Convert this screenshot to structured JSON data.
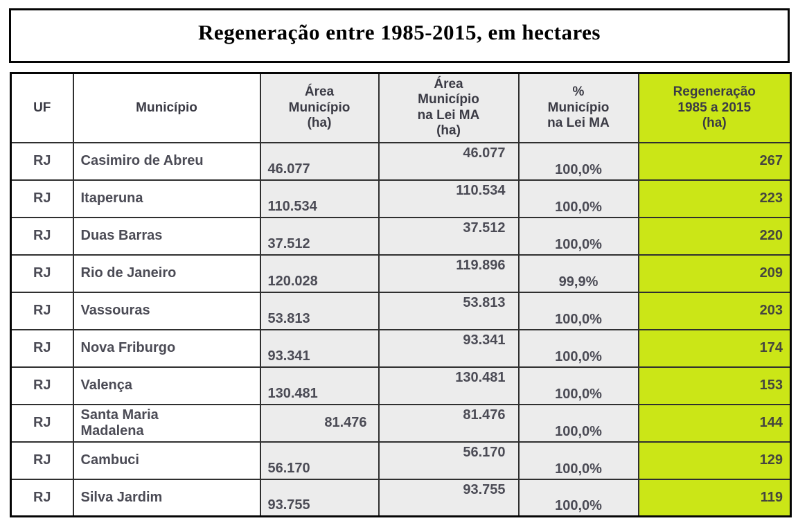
{
  "page": {
    "title": "Regeneração entre 1985-2015, em hectares"
  },
  "colors": {
    "highlight_green": "#cbe617",
    "header_cell_gray": "#ececec",
    "border_black": "#050505",
    "grid_gray": "#2f2f2f",
    "text_dark": "#3b3b45"
  },
  "chart_data": {
    "type": "table",
    "title": "Regeneração entre 1985-2015, em hectares",
    "columns": [
      {
        "id": "uf",
        "label": "UF"
      },
      {
        "id": "municipio",
        "label": "Município"
      },
      {
        "id": "area_municipio_ha",
        "label": "Área\nMunicípio\n(ha)"
      },
      {
        "id": "area_lei_ma_ha",
        "label": "Área\nMunicípio\nna Lei MA\n(ha)"
      },
      {
        "id": "pct_lei_ma",
        "label": "%\nMunicípio\nna Lei MA"
      },
      {
        "id": "regeneracao_ha",
        "label": "Regeneração\n1985 a 2015\n(ha)"
      }
    ],
    "rows": [
      {
        "uf": "RJ",
        "municipio": "Casimiro de Abreu",
        "area_municipio_ha": "46.077",
        "area_lei_ma_ha": "46.077",
        "pct_lei_ma": "100,0%",
        "regeneracao_ha": "267"
      },
      {
        "uf": "RJ",
        "municipio": "Itaperuna",
        "area_municipio_ha": "110.534",
        "area_lei_ma_ha": "110.534",
        "pct_lei_ma": "100,0%",
        "regeneracao_ha": "223"
      },
      {
        "uf": "RJ",
        "municipio": "Duas Barras",
        "area_municipio_ha": "37.512",
        "area_lei_ma_ha": "37.512",
        "pct_lei_ma": "100,0%",
        "regeneracao_ha": "220"
      },
      {
        "uf": "RJ",
        "municipio": "Rio de Janeiro",
        "area_municipio_ha": "120.028",
        "area_lei_ma_ha": "119.896",
        "pct_lei_ma": "99,9%",
        "regeneracao_ha": "209"
      },
      {
        "uf": "RJ",
        "municipio": "Vassouras",
        "area_municipio_ha": "53.813",
        "area_lei_ma_ha": "53.813",
        "pct_lei_ma": "100,0%",
        "regeneracao_ha": "203"
      },
      {
        "uf": "RJ",
        "municipio": "Nova Friburgo",
        "area_municipio_ha": "93.341",
        "area_lei_ma_ha": "93.341",
        "pct_lei_ma": "100,0%",
        "regeneracao_ha": "174"
      },
      {
        "uf": "RJ",
        "municipio": "Valença",
        "area_municipio_ha": "130.481",
        "area_lei_ma_ha": "130.481",
        "pct_lei_ma": "100,0%",
        "regeneracao_ha": "153"
      },
      {
        "uf": "RJ",
        "municipio": "Santa Maria\nMadalena",
        "area_municipio_ha": "81.476",
        "area_lei_ma_ha": "81.476",
        "pct_lei_ma": "100,0%",
        "regeneracao_ha": "144"
      },
      {
        "uf": "RJ",
        "municipio": "Cambuci",
        "area_municipio_ha": "56.170",
        "area_lei_ma_ha": "56.170",
        "pct_lei_ma": "100,0%",
        "regeneracao_ha": "129"
      },
      {
        "uf": "RJ",
        "municipio": "Silva Jardim",
        "area_municipio_ha": "93.755",
        "area_lei_ma_ha": "93.755",
        "pct_lei_ma": "100,0%",
        "regeneracao_ha": "119"
      }
    ]
  }
}
